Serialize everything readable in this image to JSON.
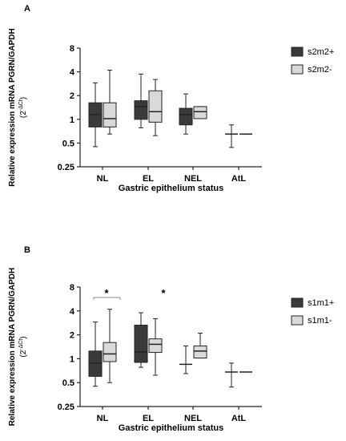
{
  "figure": {
    "background": "#ffffff"
  },
  "chart_data": [
    {
      "type": "box",
      "panel_label": "A",
      "xlabel": "Gastric epithelium status",
      "ylabel_line1": "Relative expression mRNA PGRN/GAPDH",
      "ylabel_line2_base": "(2",
      "ylabel_line2_sup": "-ΔCt",
      "ylabel_line2_end": ")",
      "y_scale": "log2",
      "ylim": [
        0.25,
        8
      ],
      "yticks": [
        0.25,
        0.5,
        1,
        2,
        4,
        8
      ],
      "ytick_labels": [
        "0.25",
        "0.5",
        "1",
        "2",
        "4",
        "8"
      ],
      "categories": [
        "NL",
        "EL",
        "NEL",
        "AtL"
      ],
      "legend_position": "right",
      "series": [
        {
          "name": "s2m2+",
          "color": "#3a3a3a",
          "boxes": [
            {
              "min": 0.45,
              "q1": 0.8,
              "median": 1.15,
              "q3": 1.62,
              "max": 2.9
            },
            {
              "min": 0.78,
              "q1": 1.0,
              "median": 1.45,
              "q3": 1.72,
              "max": 3.75
            },
            {
              "min": 0.65,
              "q1": 0.85,
              "median": 1.15,
              "q3": 1.38,
              "max": 2.1
            },
            {
              "min": 0.44,
              "q1": 0.65,
              "median": 0.65,
              "q3": 0.65,
              "max": 0.85
            }
          ]
        },
        {
          "name": "s2m2-",
          "color": "#d9d9d9",
          "boxes": [
            {
              "min": 0.65,
              "q1": 0.8,
              "median": 1.02,
              "q3": 1.62,
              "max": 4.2
            },
            {
              "min": 0.62,
              "q1": 0.92,
              "median": 1.25,
              "q3": 2.3,
              "max": 3.2
            },
            {
              "min": 1.02,
              "q1": 1.02,
              "median": 1.25,
              "q3": 1.45,
              "max": 1.45
            },
            {
              "min": 0.65,
              "q1": 0.65,
              "median": 0.65,
              "q3": 0.65,
              "max": 0.65
            }
          ]
        }
      ],
      "annotations": []
    },
    {
      "type": "box",
      "panel_label": "B",
      "xlabel": "Gastric epithelium status",
      "ylabel_line1": "Relative expression mRNA PGRN/GAPDH",
      "ylabel_line2_base": "(2",
      "ylabel_line2_sup": "-ΔCt",
      "ylabel_line2_end": ")",
      "y_scale": "log2",
      "ylim": [
        0.25,
        8
      ],
      "yticks": [
        0.25,
        0.5,
        1,
        2,
        4,
        8
      ],
      "ytick_labels": [
        "0.25",
        "0.5",
        "1",
        "2",
        "4",
        "8"
      ],
      "categories": [
        "NL",
        "EL",
        "NEL",
        "AtL"
      ],
      "legend_position": "right",
      "series": [
        {
          "name": "s1m1+",
          "color": "#3a3a3a",
          "boxes": [
            {
              "min": 0.45,
              "q1": 0.6,
              "median": 0.88,
              "q3": 1.25,
              "max": 2.9
            },
            {
              "min": 0.78,
              "q1": 0.9,
              "median": 1.22,
              "q3": 2.65,
              "max": 3.8
            },
            {
              "min": 0.65,
              "q1": 0.85,
              "median": 0.85,
              "q3": 0.85,
              "max": 1.45
            },
            {
              "min": 0.44,
              "q1": 0.68,
              "median": 0.68,
              "q3": 0.68,
              "max": 0.88
            }
          ]
        },
        {
          "name": "s1m1-",
          "color": "#d9d9d9",
          "boxes": [
            {
              "min": 0.5,
              "q1": 0.92,
              "median": 1.15,
              "q3": 1.6,
              "max": 4.2
            },
            {
              "min": 0.62,
              "q1": 1.2,
              "median": 1.52,
              "q3": 1.78,
              "max": 3.2
            },
            {
              "min": 1.02,
              "q1": 1.02,
              "median": 1.25,
              "q3": 1.45,
              "max": 2.1
            },
            {
              "min": 0.68,
              "q1": 0.68,
              "median": 0.68,
              "q3": 0.68,
              "max": 0.68
            }
          ]
        }
      ],
      "annotations": [
        {
          "text": "*",
          "between": "NL",
          "bracket": true
        },
        {
          "text": "*",
          "between": "EL",
          "bracket": false
        }
      ]
    }
  ]
}
